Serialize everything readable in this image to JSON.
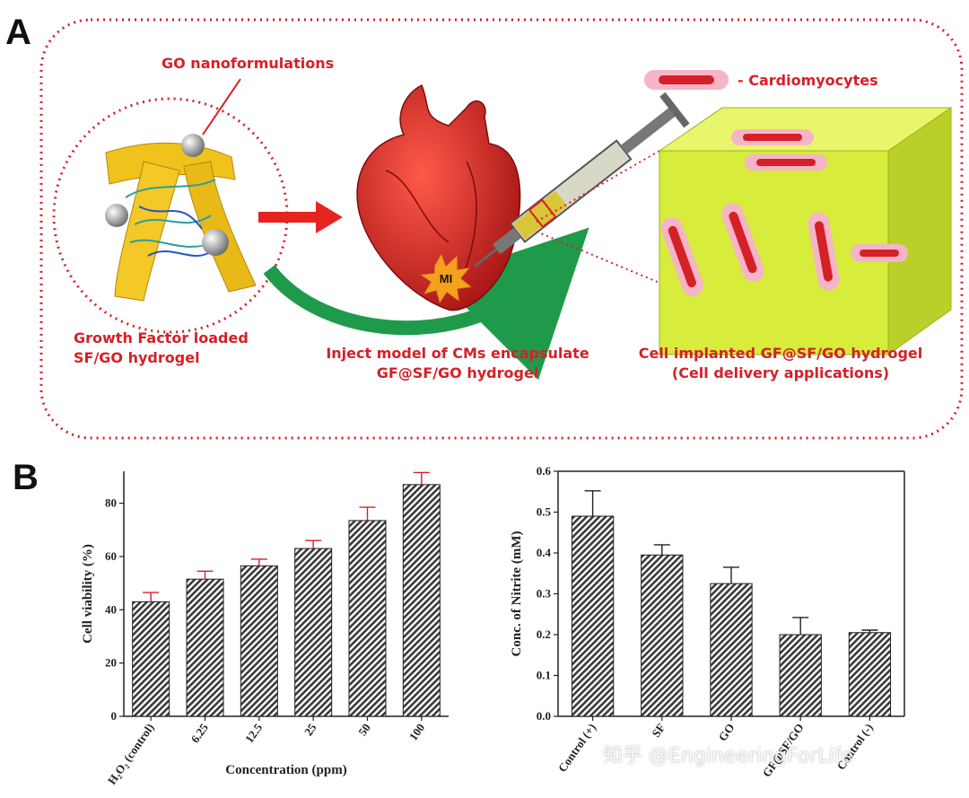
{
  "panel_a": {
    "letter": "A",
    "go_label": "GO nanoformulations",
    "legend_label": "- Cardiomyocytes",
    "left_caption": [
      "Growth Factor loaded",
      "SF/GO hydrogel"
    ],
    "mid_caption": [
      "Inject model of CMs encapsulate",
      "GF@SF/GO hydrogel"
    ],
    "right_caption": [
      "Cell implanted GF@SF/GO hydrogel",
      "(Cell delivery applications)"
    ],
    "mi_label": "MI"
  },
  "panel_b": {
    "letter": "B"
  },
  "watermark": "知乎 @EngineeringForLife",
  "colors": {
    "accent_red": "#d52027",
    "cube_face": "#d7ec3b",
    "bar_fill": "#3a3a3a",
    "error_left": "#d52027"
  },
  "chart_data": [
    {
      "type": "bar",
      "categories": [
        "H₂O₂ (control)",
        "6.25",
        "12.5",
        "25",
        "50",
        "100"
      ],
      "values": [
        43,
        51.5,
        56.5,
        63,
        73.5,
        87
      ],
      "errors": [
        3.5,
        3,
        2.5,
        3,
        5,
        4.5
      ],
      "xlabel": "Concentration (ppm)",
      "ylabel": "Cell viability (%)",
      "ylim": [
        0,
        92
      ],
      "yticks": [
        "0",
        "20",
        "40",
        "60",
        "80"
      ]
    },
    {
      "type": "bar",
      "categories": [
        "Control (+)",
        "SF",
        "GO",
        "GF@SF/GO",
        "Control (-)"
      ],
      "values": [
        0.49,
        0.395,
        0.325,
        0.2,
        0.205
      ],
      "errors": [
        0.062,
        0.025,
        0.04,
        0.042,
        0.006
      ],
      "xlabel": "",
      "ylabel": "Conc. of Nitrite (mM)",
      "ylim": [
        0,
        0.6
      ],
      "yticks": [
        "0.0",
        "0.1",
        "0.2",
        "0.3",
        "0.4",
        "0.5",
        "0.6"
      ]
    }
  ]
}
